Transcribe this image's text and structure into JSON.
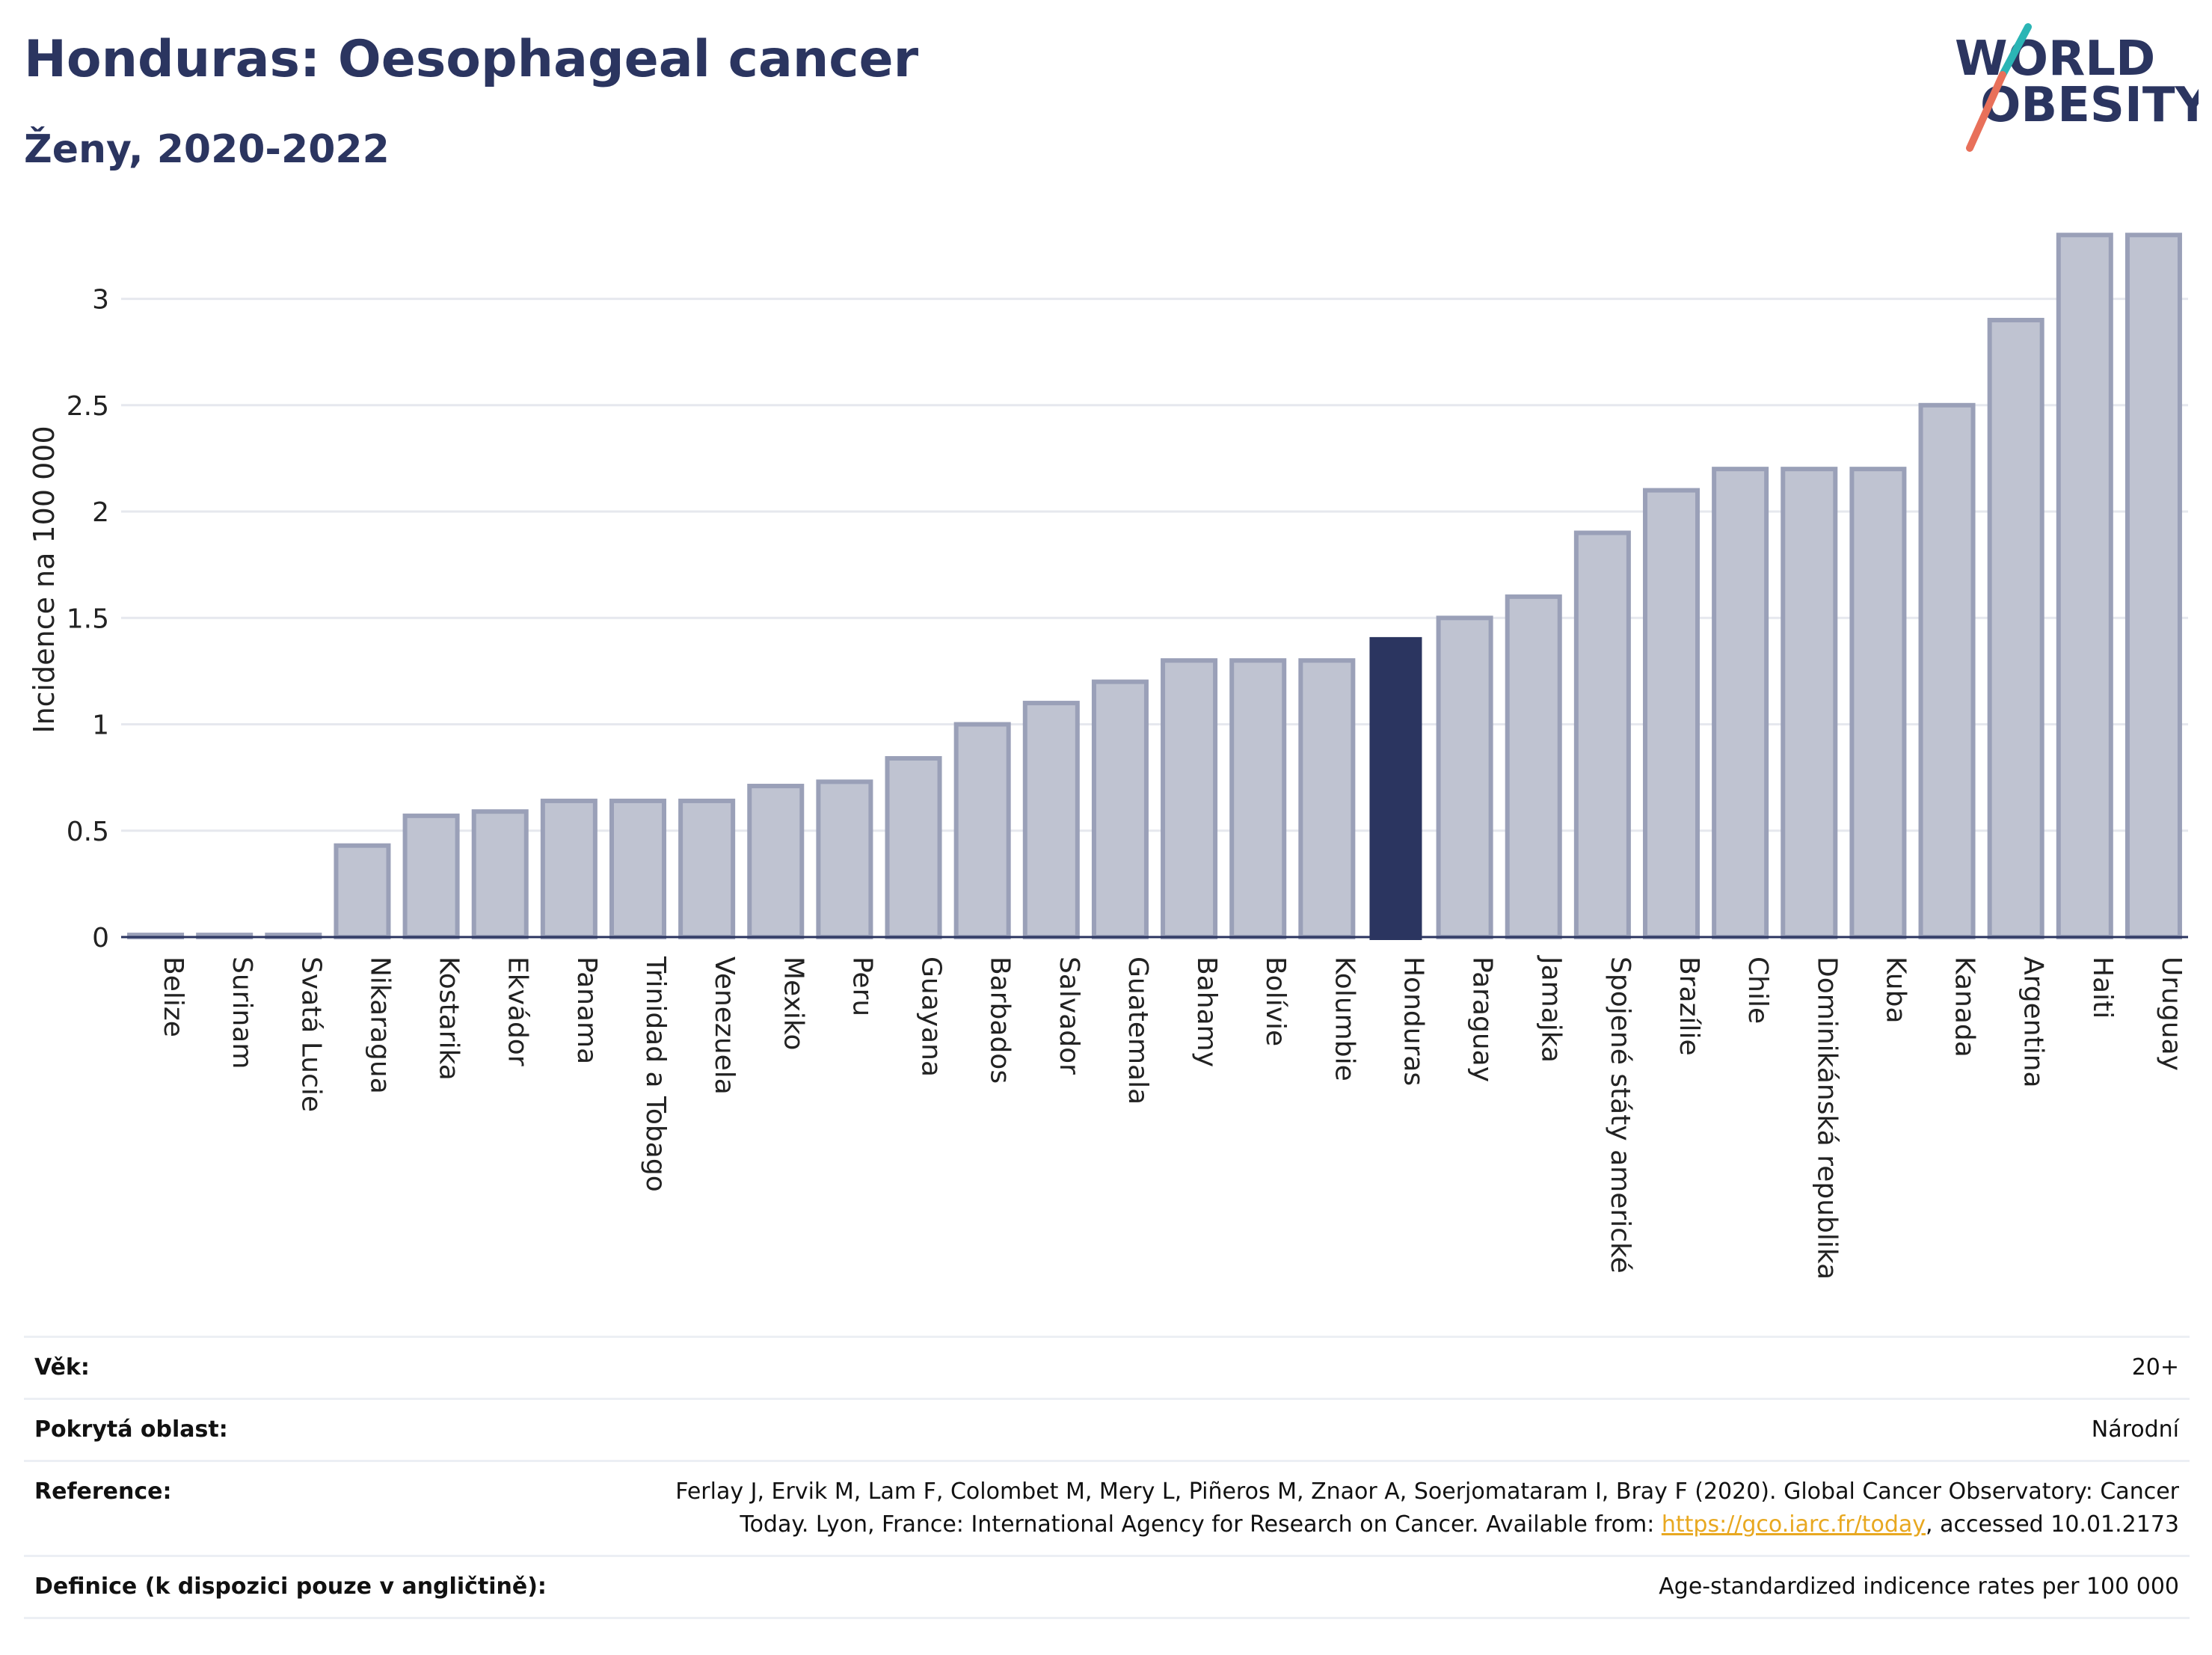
{
  "header": {
    "title": "Honduras: Oesophageal cancer",
    "subtitle": "Ženy, 2020-2022"
  },
  "logo": {
    "line1": "WORLD",
    "line2": "OBESITY"
  },
  "colors": {
    "bar_default": "#bfc3d1",
    "bar_default_stroke": "#9aa0b8",
    "bar_highlight": "#2b3560",
    "text": "#2b3560",
    "logo_teal": "#2bb5b5",
    "logo_coral": "#e8705a",
    "link": "#e8a820"
  },
  "chart_data": {
    "type": "bar",
    "ylabel": "Incidence na 100 000",
    "ylim": [
      0,
      3.35
    ],
    "yticks": [
      0,
      0.5,
      1,
      1.5,
      2,
      2.5,
      3
    ],
    "ytick_labels": [
      "0",
      "0.5",
      "1",
      "1.5",
      "2",
      "2.5",
      "3"
    ],
    "highlight": "Honduras",
    "grid": true,
    "categories": [
      "Belize",
      "Surinam",
      "Svatá Lucie",
      "Nikaragua",
      "Kostarika",
      "Ekvádor",
      "Panama",
      "Trinidad a Tobago",
      "Venezuela",
      "Mexiko",
      "Peru",
      "Guayana",
      "Barbados",
      "Salvador",
      "Guatemala",
      "Bahamy",
      "Bolívie",
      "Kolumbie",
      "Honduras",
      "Paraguay",
      "Jamajka",
      "Spojené státy americké",
      "Brazílie",
      "Chile",
      "Dominikánská republika",
      "Kuba",
      "Kanada",
      "Argentina",
      "Haiti",
      "Uruguay"
    ],
    "values": [
      0.01,
      0.01,
      0.01,
      0.43,
      0.57,
      0.59,
      0.64,
      0.64,
      0.64,
      0.71,
      0.73,
      0.84,
      1.0,
      1.1,
      1.2,
      1.3,
      1.3,
      1.3,
      1.41,
      1.5,
      1.6,
      1.9,
      2.1,
      2.2,
      2.2,
      2.2,
      2.5,
      2.9,
      3.3,
      3.3
    ]
  },
  "info": [
    {
      "label": "Věk:",
      "value": "20+"
    },
    {
      "label": "Pokrytá oblast:",
      "value": "Národní"
    },
    {
      "label": "Reference:",
      "value_line1": "Ferlay J, Ervik M, Lam F, Colombet M, Mery L, Piñeros M, Znaor A, Soerjomataram I, Bray F (2020). Global Cancer Observatory: Cancer",
      "value_line2_pre": "Today. Lyon, France: International Agency for Research on Cancer. Available from: ",
      "value_link": "https://gco.iarc.fr/today",
      "value_line2_post": ", accessed 10.01.2173"
    },
    {
      "label": "Definice (k dispozici pouze v angličtině):",
      "value": "Age-standardized indicence rates per 100 000"
    }
  ]
}
